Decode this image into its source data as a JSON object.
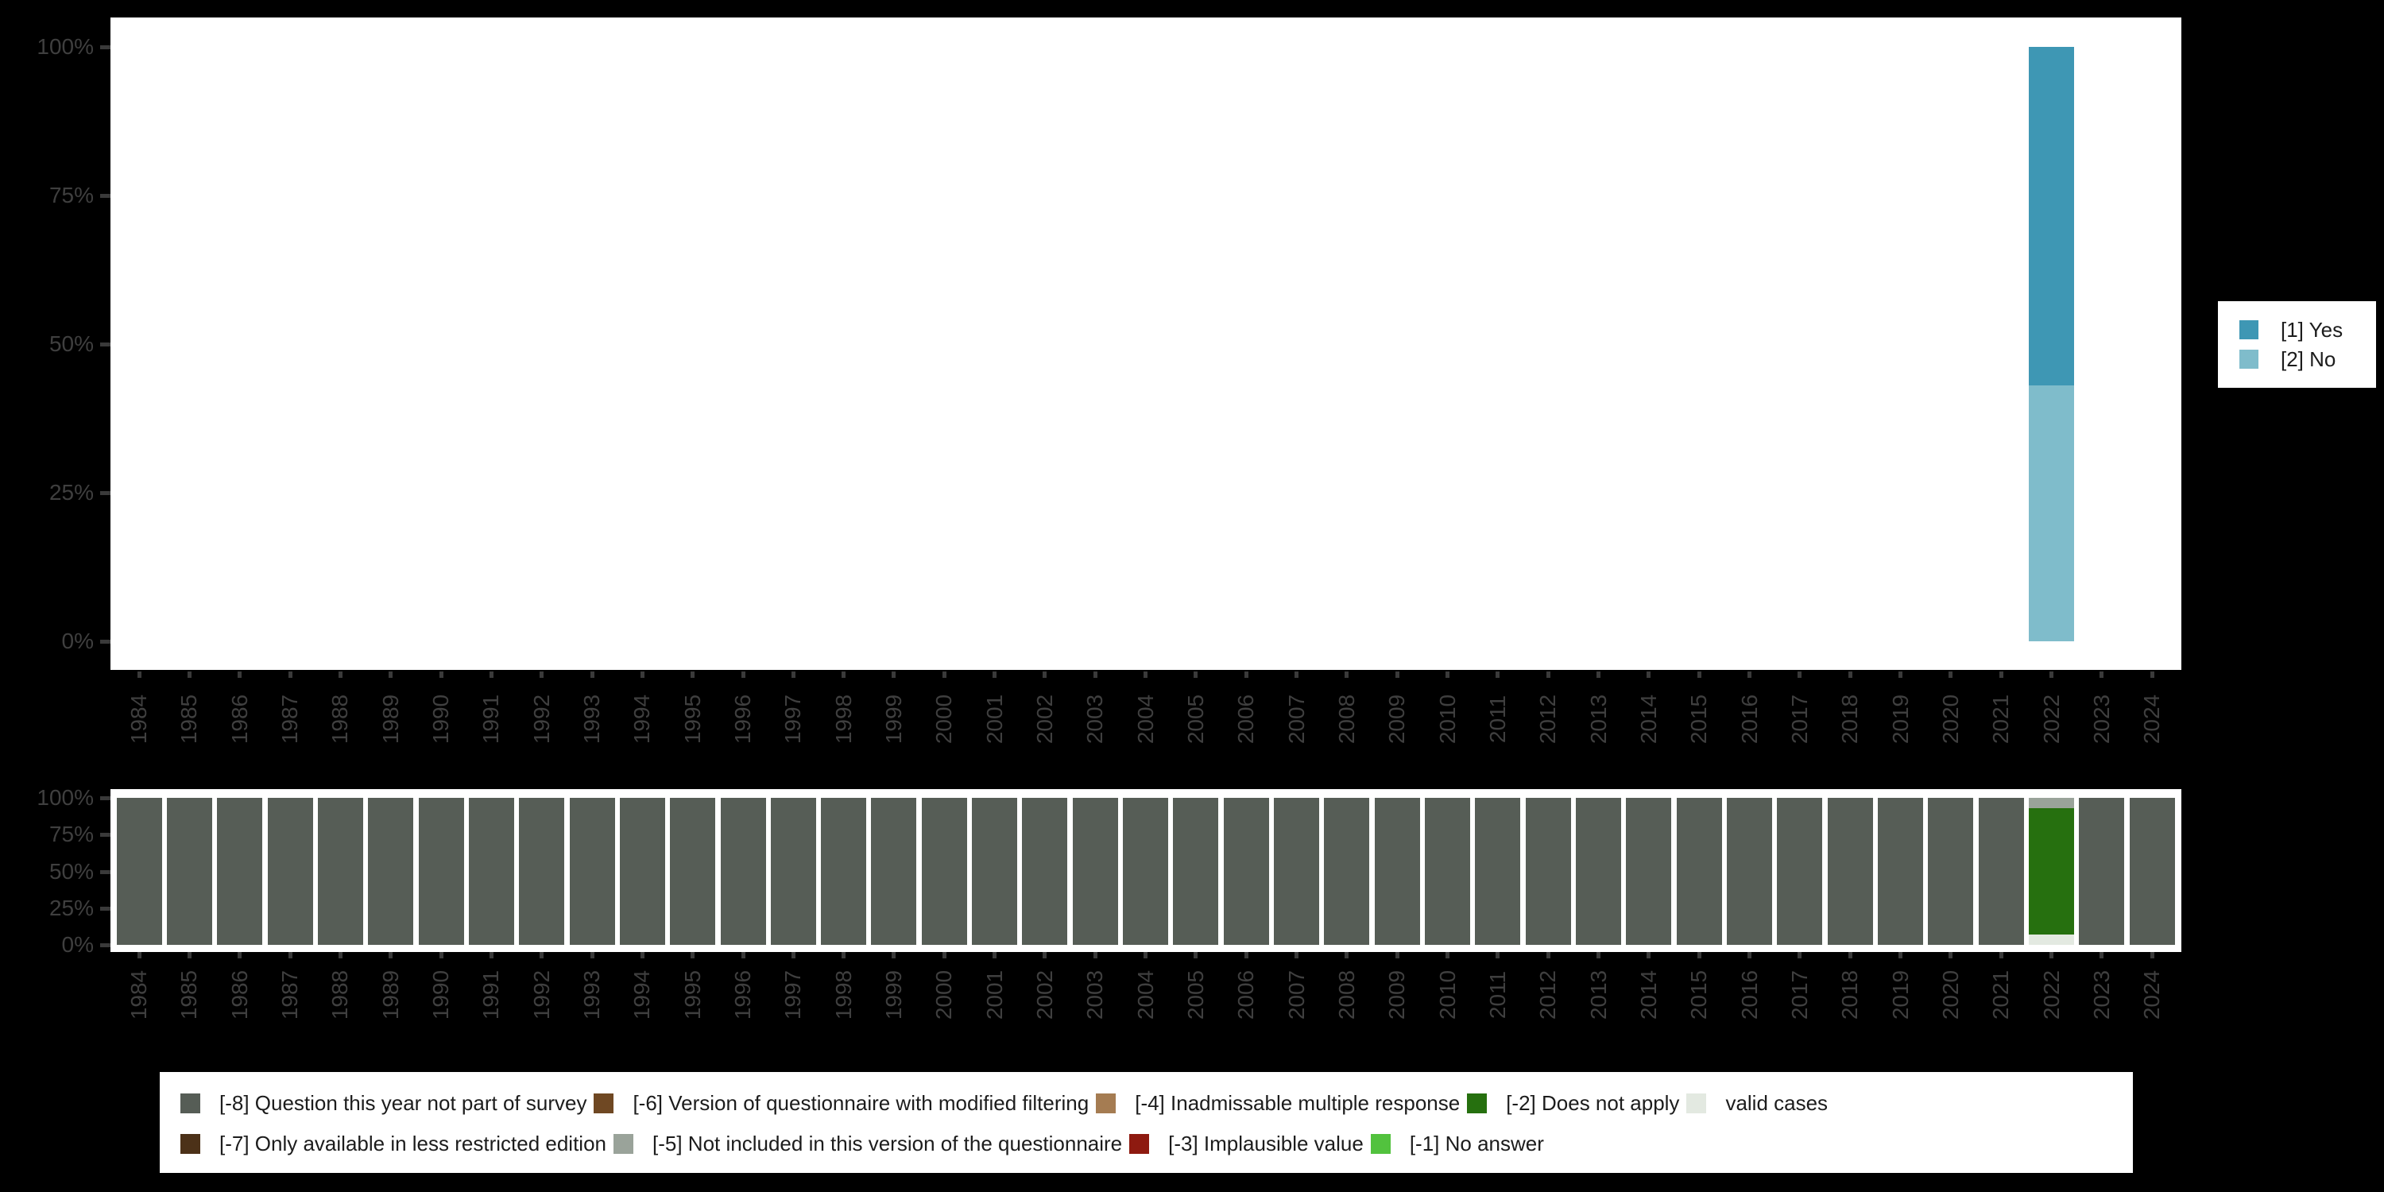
{
  "figure": {
    "background": "#000000",
    "panel_color": "#ffffff",
    "axis_text_color": "#3f3f3f",
    "tick_color": "#3a3a3a"
  },
  "right_legend": {
    "items": [
      {
        "label": "[1] Yes",
        "color": "#3e97b4"
      },
      {
        "label": "[2] No",
        "color": "#7fbccb"
      }
    ]
  },
  "bottom_legend": {
    "rows": [
      [
        {
          "label": "[-8] Question this year not part of survey",
          "color": "#565d56"
        },
        {
          "label": "[-6] Version of questionnaire with modified filtering",
          "color": "#6f4823"
        },
        {
          "label": "[-4] Inadmissable multiple response",
          "color": "#a57c52"
        },
        {
          "label": "[-2] Does not apply",
          "color": "#26700f"
        },
        {
          "label": "valid cases",
          "color": "#e3e9e1"
        }
      ],
      [
        {
          "label": "[-7] Only available in less restricted edition",
          "color": "#4c3118"
        },
        {
          "label": "[-5] Not included in this version of the questionnaire",
          "color": "#9aa39a"
        },
        {
          "label": "[-3] Implausible value",
          "color": "#8e1a10"
        },
        {
          "label": "[-1] No answer",
          "color": "#52c23e"
        }
      ]
    ]
  },
  "chart_data": [
    {
      "type": "bar",
      "stacked": true,
      "title": "",
      "xlabel": "",
      "ylabel": "",
      "ylim": [
        0,
        100
      ],
      "yticks": [
        "0%",
        "25%",
        "50%",
        "75%",
        "100%"
      ],
      "grid": false,
      "legend_position": "right",
      "categories": [
        "1984",
        "1985",
        "1986",
        "1987",
        "1988",
        "1989",
        "1990",
        "1991",
        "1992",
        "1993",
        "1994",
        "1995",
        "1996",
        "1997",
        "1998",
        "1999",
        "2000",
        "2001",
        "2002",
        "2003",
        "2004",
        "2005",
        "2006",
        "2007",
        "2008",
        "2009",
        "2010",
        "2011",
        "2012",
        "2013",
        "2014",
        "2015",
        "2016",
        "2017",
        "2018",
        "2019",
        "2020",
        "2021",
        "2022",
        "2023",
        "2024"
      ],
      "series": [
        {
          "name": "[1] Yes",
          "color": "#3e97b4",
          "values_by_category": {
            "2022": 57
          }
        },
        {
          "name": "[2] No",
          "color": "#7fbccb",
          "values_by_category": {
            "2022": 43
          }
        }
      ],
      "stack_order": "top-to-bottom"
    },
    {
      "type": "bar",
      "stacked": true,
      "title": "",
      "xlabel": "",
      "ylabel": "",
      "ylim": [
        0,
        100
      ],
      "yticks": [
        "0%",
        "25%",
        "50%",
        "75%",
        "100%"
      ],
      "grid": false,
      "legend_position": "bottom",
      "categories": [
        "1984",
        "1985",
        "1986",
        "1987",
        "1988",
        "1989",
        "1990",
        "1991",
        "1992",
        "1993",
        "1994",
        "1995",
        "1996",
        "1997",
        "1998",
        "1999",
        "2000",
        "2001",
        "2002",
        "2003",
        "2004",
        "2005",
        "2006",
        "2007",
        "2008",
        "2009",
        "2010",
        "2011",
        "2012",
        "2013",
        "2014",
        "2015",
        "2016",
        "2017",
        "2018",
        "2019",
        "2020",
        "2021",
        "2022",
        "2023",
        "2024"
      ],
      "default_stack": [
        {
          "name": "[-8] Question this year not part of survey",
          "color": "#565d56",
          "pct": 100
        }
      ],
      "stacks_by_category": {
        "2022": [
          {
            "name": "[-5] Not included in this version of the questionnaire",
            "color": "#9aa39a",
            "pct": 7
          },
          {
            "name": "[-2] Does not apply",
            "color": "#26700f",
            "pct": 86
          },
          {
            "name": "valid cases",
            "color": "#e3e9e1",
            "pct": 7
          }
        ]
      },
      "stack_order": "top-to-bottom"
    }
  ]
}
